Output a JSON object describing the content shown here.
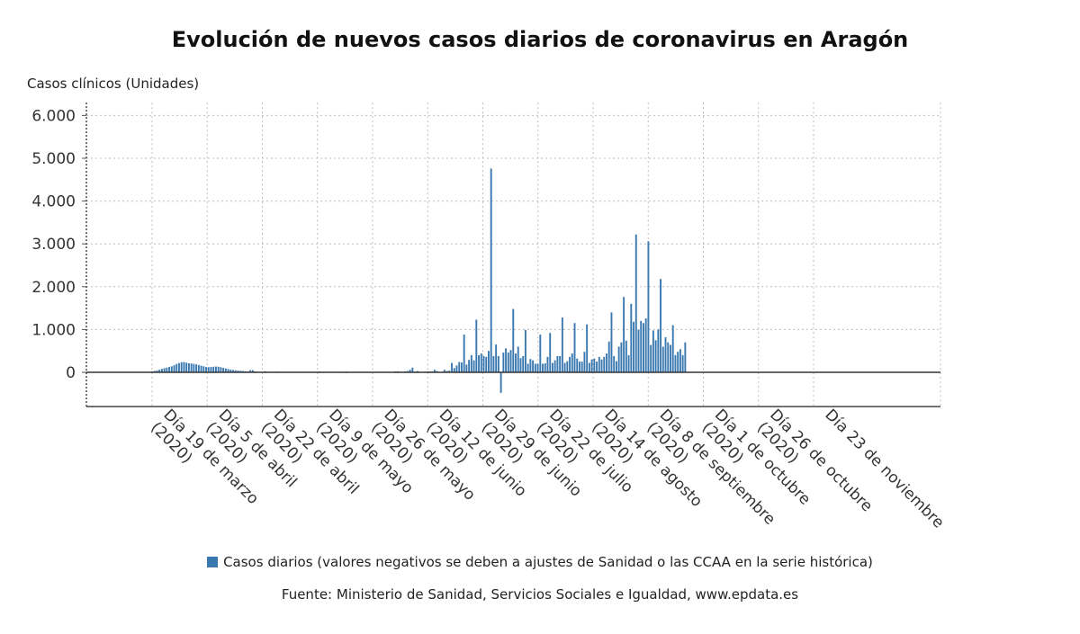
{
  "chart_data": {
    "type": "bar",
    "title": "Evolución de nuevos casos diarios de coronavirus en Aragón",
    "ylabel": "Casos clínicos (Unidades)",
    "xlabel": "",
    "ylim": [
      -800,
      6300
    ],
    "yticks": [
      0,
      1000,
      2000,
      3000,
      4000,
      5000,
      6000
    ],
    "ytick_labels": [
      "0",
      "1.000",
      "2.000",
      "3.000",
      "4.000",
      "5.000",
      "6.000"
    ],
    "xtick_labels": [
      {
        "line1": "Día 19 de marzo",
        "line2": "(2020)"
      },
      {
        "line1": "Día 5 de abril",
        "line2": "(2020)"
      },
      {
        "line1": "Día 22 de abril",
        "line2": "(2020)"
      },
      {
        "line1": "Día 9 de mayo",
        "line2": "(2020)"
      },
      {
        "line1": "Día 26 de mayo",
        "line2": "(2020)"
      },
      {
        "line1": "Día 12 de junio",
        "line2": "(2020)"
      },
      {
        "line1": "Día 29 de junio",
        "line2": "(2020)"
      },
      {
        "line1": "Día 22 de julio",
        "line2": "(2020)"
      },
      {
        "line1": "Día 14 de agosto",
        "line2": "(2020)"
      },
      {
        "line1": "Día 8 de septiembre",
        "line2": "(2020)"
      },
      {
        "line1": "Día 1 de octubre",
        "line2": "(2020)"
      },
      {
        "line1": "Día 26 de octubre",
        "line2": "(2020)"
      },
      {
        "line1": "Día 23 de noviembre",
        "line2": ""
      }
    ],
    "grid": true,
    "legend_position": "bottom",
    "bar_color": "#3a78b0",
    "series": [
      {
        "name": "Casos diarios (valores negativos se deben a ajustes de Sanidad o las CCAA en la serie histórica)",
        "values": [
          20,
          30,
          40,
          60,
          80,
          95,
          110,
          125,
          140,
          165,
          195,
          215,
          235,
          240,
          225,
          210,
          205,
          195,
          185,
          170,
          155,
          140,
          125,
          120,
          125,
          130,
          135,
          130,
          120,
          105,
          90,
          75,
          65,
          55,
          45,
          40,
          35,
          30,
          25,
          20,
          50,
          50,
          20,
          15,
          10,
          10,
          25,
          10,
          10,
          10,
          10,
          15,
          10,
          10,
          10,
          10,
          10,
          5,
          5,
          5,
          5,
          5,
          5,
          5,
          5,
          5,
          5,
          10,
          20,
          5,
          5,
          5,
          5,
          5,
          5,
          5,
          5,
          5,
          5,
          -20,
          5,
          5,
          5,
          5,
          5,
          5,
          5,
          10,
          5,
          5,
          5,
          5,
          5,
          10,
          5,
          5,
          10,
          10,
          10,
          20,
          25,
          15,
          10,
          20,
          30,
          60,
          110,
          15,
          30,
          10,
          10,
          10,
          20,
          20,
          20,
          60,
          30,
          10,
          10,
          60,
          30,
          40,
          220,
          100,
          160,
          240,
          230,
          880,
          180,
          290,
          400,
          280,
          1230,
          400,
          440,
          380,
          360,
          500,
          4760,
          380,
          650,
          380,
          -480,
          460,
          560,
          460,
          520,
          1480,
          440,
          600,
          330,
          380,
          990,
          200,
          310,
          280,
          200,
          200,
          880,
          200,
          210,
          360,
          920,
          220,
          280,
          380,
          380,
          1280,
          220,
          260,
          360,
          440,
          1150,
          320,
          250,
          250,
          480,
          1120,
          220,
          300,
          320,
          250,
          360,
          300,
          360,
          440,
          720,
          1400,
          380,
          260,
          600,
          700,
          1760,
          740,
          400,
          1600,
          1180,
          3220,
          1000,
          1200,
          1150,
          1260,
          3060,
          640,
          980,
          750,
          1000,
          2180,
          600,
          820,
          700,
          640,
          1100,
          400,
          480,
          540,
          400,
          700
        ]
      }
    ]
  },
  "legend": {
    "label": "Casos diarios (valores negativos se deben a ajustes de Sanidad o las CCAA en la serie histórica)",
    "color": "#3a78b0"
  },
  "source": "Fuente: Ministerio de Sanidad, Servicios Sociales e Igualdad, www.epdata.es"
}
